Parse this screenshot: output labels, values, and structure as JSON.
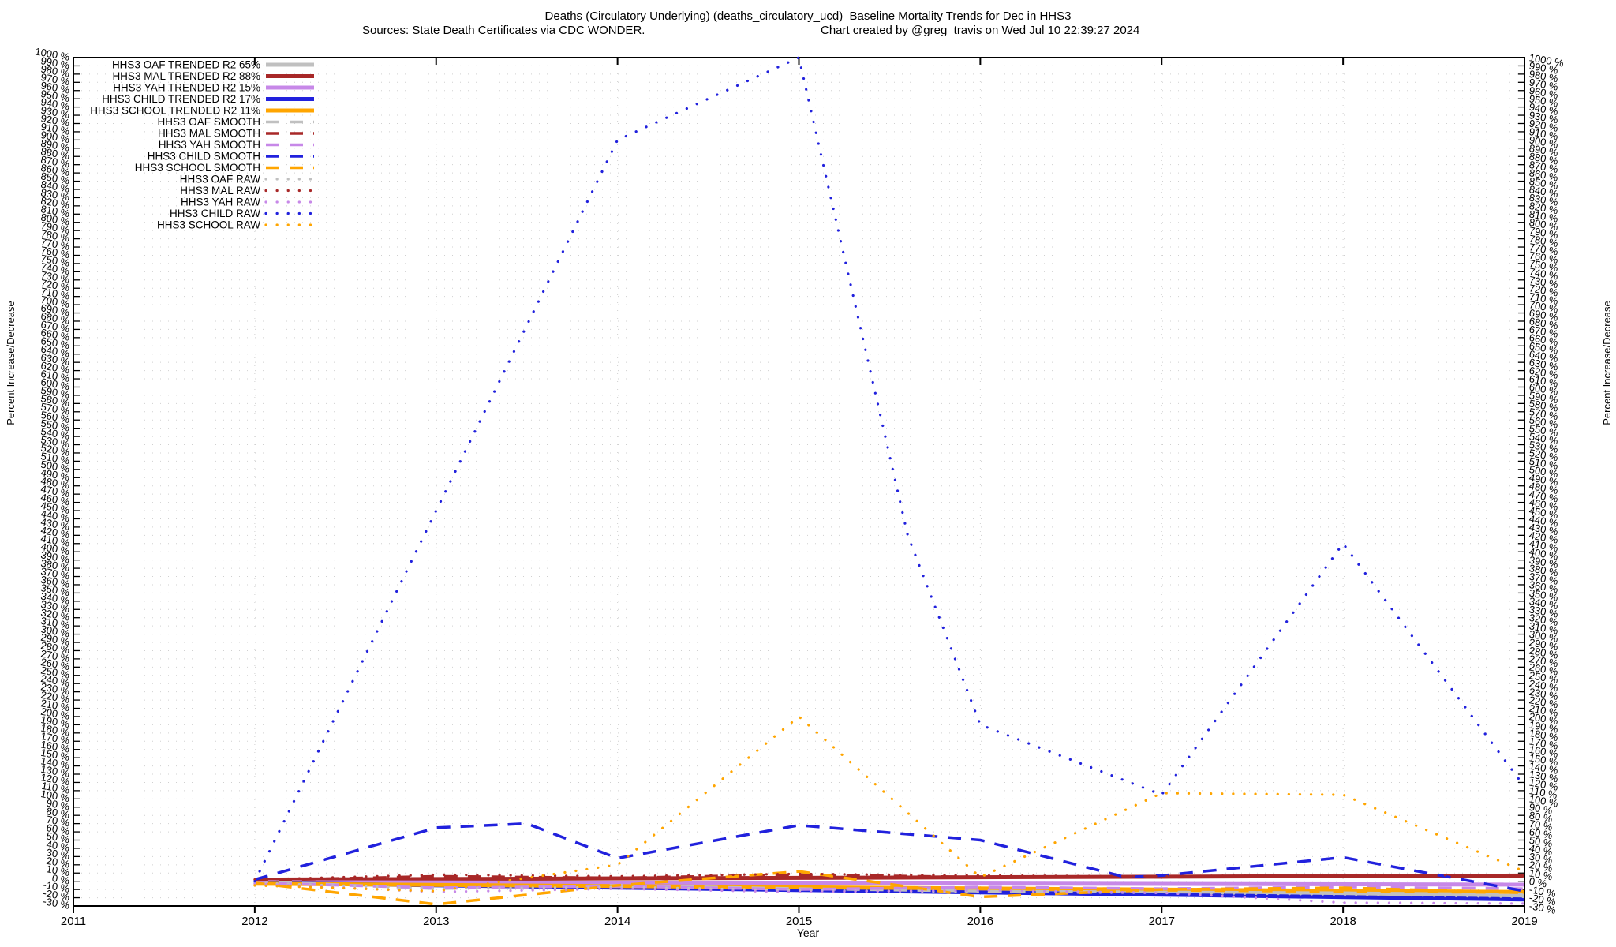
{
  "header": {
    "title": "Deaths (Circulatory Underlying) (deaths_circulatory_ucd)  Baseline Mortality Trends for Dec in HHS3",
    "subtitle_source": "Sources: State Death Certificates via CDC WONDER.",
    "subtitle_credit": "Chart created by @greg_travis on Wed Jul 10 22:39:27 2024"
  },
  "axes": {
    "x_label": "Year",
    "y_left_label": "Percent Increase/Decrease",
    "y_right_label": "Percent Increase/Decrease"
  },
  "chart_data": {
    "type": "line",
    "title": "Deaths (Circulatory Underlying) (deaths_circulatory_ucd)  Baseline Mortality Trends for Dec in HHS3",
    "xlabel": "Year",
    "ylabel": "Percent Increase/Decrease",
    "x_ticks": [
      2011,
      2012,
      2013,
      2014,
      2015,
      2016,
      2017,
      2018,
      2019
    ],
    "x_range": [
      2011,
      2019
    ],
    "y_range": [
      -30,
      1000
    ],
    "y_tick_step": 10,
    "y_tick_suffix": " %",
    "grid": true,
    "legend_position": "top-left-inside",
    "colors": {
      "OAF": "#c0c0c0",
      "MAL": "#a82828",
      "YAH": "#c788e8",
      "CHILD": "#2121dd",
      "SCHOOL": "#ffa500",
      "grid": "#d0d0d0",
      "axis": "#000000"
    },
    "series": [
      {
        "name": "HHS3 OAF TRENDED",
        "legend_label": "HHS3 OAF TRENDED R2  65%",
        "r2_pct": 65,
        "group": "OAF",
        "style": "solid",
        "x": [
          2012,
          2019
        ],
        "y": [
          0,
          -18
        ]
      },
      {
        "name": "HHS3 MAL TRENDED",
        "legend_label": "HHS3 MAL TRENDED R2  88%",
        "r2_pct": 88,
        "group": "MAL",
        "style": "solid",
        "x": [
          2012,
          2019
        ],
        "y": [
          2,
          7
        ]
      },
      {
        "name": "HHS3 YAH TRENDED",
        "legend_label": "HHS3 YAH TRENDED R2  15%",
        "r2_pct": 15,
        "group": "YAH",
        "style": "solid",
        "x": [
          2012,
          2019
        ],
        "y": [
          -1,
          -4
        ]
      },
      {
        "name": "HHS3 CHILD TRENDED",
        "legend_label": "HHS3 CHILD TRENDED R2  17%",
        "r2_pct": 17,
        "group": "CHILD",
        "style": "solid",
        "x": [
          2012,
          2019
        ],
        "y": [
          -2,
          -22
        ]
      },
      {
        "name": "HHS3 SCHOOL TRENDED",
        "legend_label": "HHS3 SCHOOL TRENDED R2  11%",
        "r2_pct": 11,
        "group": "SCHOOL",
        "style": "solid",
        "x": [
          2012,
          2019
        ],
        "y": [
          -3,
          -13
        ]
      },
      {
        "name": "HHS3 OAF SMOOTH",
        "legend_label": "HHS3 OAF SMOOTH",
        "group": "OAF",
        "style": "dashed",
        "x": [
          2012,
          2013,
          2014,
          2015,
          2016,
          2017,
          2018,
          2019
        ],
        "y": [
          0,
          -9,
          -5,
          -9,
          -12,
          -13,
          -14,
          -16
        ]
      },
      {
        "name": "HHS3 MAL SMOOTH",
        "legend_label": "HHS3 MAL SMOOTH",
        "group": "MAL",
        "style": "dashed",
        "x": [
          2012,
          2013,
          2014,
          2015,
          2016,
          2017,
          2018,
          2019
        ],
        "y": [
          1,
          6,
          4,
          8,
          5,
          5,
          7,
          6
        ]
      },
      {
        "name": "HHS3 YAH SMOOTH",
        "legend_label": "HHS3 YAH SMOOTH",
        "group": "YAH",
        "style": "dashed",
        "x": [
          2012,
          2013,
          2014,
          2015,
          2016,
          2017,
          2018,
          2019
        ],
        "y": [
          -2,
          -8,
          -6,
          -10,
          -7,
          -9,
          -7,
          -9
        ]
      },
      {
        "name": "HHS3 CHILD SMOOTH",
        "legend_label": "HHS3 CHILD SMOOTH",
        "group": "CHILD",
        "style": "dashed",
        "x": [
          2012,
          2013,
          2013.5,
          2014,
          2015,
          2016,
          2016.8,
          2017,
          2018,
          2019
        ],
        "y": [
          2,
          65,
          70,
          28,
          68,
          50,
          5,
          7,
          29,
          -12
        ]
      },
      {
        "name": "HHS3 SCHOOL SMOOTH",
        "legend_label": "HHS3 SCHOOL SMOOTH",
        "group": "SCHOOL",
        "style": "dashed",
        "x": [
          2012,
          2013,
          2014,
          2015,
          2016,
          2017,
          2018,
          2019
        ],
        "y": [
          -2,
          -28,
          -5,
          12,
          -19,
          -10,
          -8,
          -14
        ]
      },
      {
        "name": "HHS3 OAF RAW",
        "legend_label": "HHS3 OAF RAW",
        "group": "OAF",
        "style": "dotted",
        "x": [
          2012,
          2013,
          2014,
          2015,
          2016,
          2017,
          2018,
          2019
        ],
        "y": [
          -2,
          -9,
          -7,
          -11,
          -13,
          -14,
          -16,
          -19
        ]
      },
      {
        "name": "HHS3 MAL RAW",
        "legend_label": "HHS3 MAL RAW",
        "group": "MAL",
        "style": "dotted",
        "x": [
          2012,
          2013,
          2014,
          2015,
          2016,
          2017,
          2018,
          2019
        ],
        "y": [
          2,
          8,
          6,
          9,
          7,
          6,
          8,
          7
        ]
      },
      {
        "name": "HHS3 YAH RAW",
        "legend_label": "HHS3 YAH RAW",
        "group": "YAH",
        "style": "dotted",
        "x": [
          2012,
          2013,
          2014,
          2015,
          2016,
          2017,
          2018,
          2019
        ],
        "y": [
          -3,
          -13,
          -9,
          -13,
          -11,
          -14,
          -26,
          -27
        ]
      },
      {
        "name": "HHS3 CHILD RAW",
        "legend_label": "HHS3 CHILD RAW",
        "group": "CHILD",
        "style": "dotted",
        "x": [
          2012,
          2013,
          2014,
          2015,
          2015.6,
          2016,
          2017,
          2018,
          2019
        ],
        "y": [
          0,
          450,
          900,
          1000,
          420,
          190,
          105,
          410,
          115
        ]
      },
      {
        "name": "HHS3 SCHOOL RAW",
        "legend_label": "HHS3 SCHOOL RAW",
        "group": "SCHOOL",
        "style": "dotted",
        "x": [
          2012,
          2013,
          2014,
          2015,
          2016,
          2017,
          2018,
          2019
        ],
        "y": [
          -5,
          -12,
          20,
          200,
          5,
          107,
          105,
          12
        ]
      }
    ]
  }
}
